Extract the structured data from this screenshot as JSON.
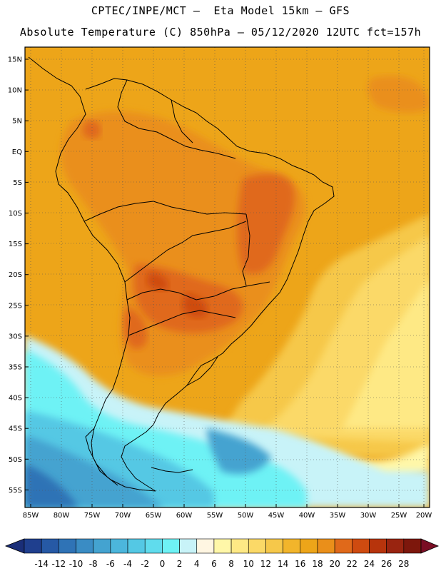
{
  "header": {
    "line1": "CPTEC/INPE/MCT —  Eta Model 15km — GFS",
    "line2": "Absolute Temperature (C) 850hPa — 05/12/2020 12UTC fct=157h"
  },
  "lat_labels": [
    "15N",
    "10N",
    "5N",
    "EQ",
    "5S",
    "10S",
    "15S",
    "20S",
    "25S",
    "30S",
    "35S",
    "40S",
    "45S",
    "50S",
    "55S"
  ],
  "lon_labels": [
    "85W",
    "80W",
    "75W",
    "70W",
    "65W",
    "60W",
    "55W",
    "50W",
    "45W",
    "40W",
    "35W",
    "30W",
    "25W",
    "20W"
  ],
  "colorbar": {
    "labels": [
      "-14",
      "-12",
      "-10",
      "-8",
      "-6",
      "-4",
      "-2",
      "0",
      "2",
      "4",
      "6",
      "8",
      "10",
      "12",
      "14",
      "16",
      "18",
      "20",
      "22",
      "24",
      "26",
      "28"
    ],
    "colors": [
      "#1f3f8e",
      "#2659a5",
      "#2f73b6",
      "#3a8cc4",
      "#44a3d0",
      "#4cb6dc",
      "#54c8e4",
      "#60dced",
      "#6ef2f5",
      "#c8f3f8",
      "#fff6e2",
      "#fff7a8",
      "#fee985",
      "#fbd967",
      "#f6c84a",
      "#f2b52b",
      "#eda519",
      "#ea8f1a",
      "#e0691a",
      "#cf4b10",
      "#b7340c",
      "#992410",
      "#7d170c"
    ],
    "low_color": "#1a2e78",
    "high_color": "#7a0d24"
  }
}
